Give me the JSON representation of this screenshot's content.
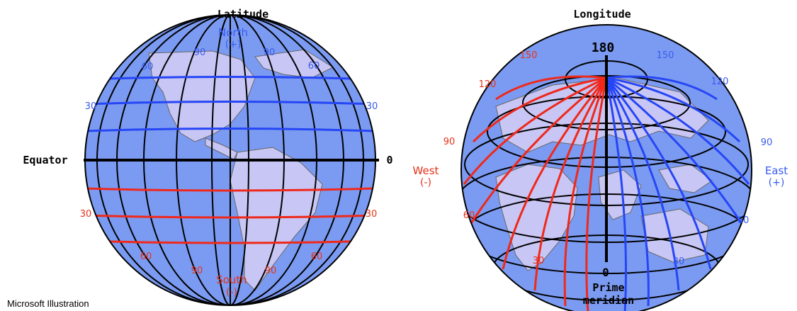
{
  "latitude": {
    "title": "Latitude",
    "north_label": "North",
    "north_sign": "(+)",
    "south_label": "South",
    "south_sign": "(-)",
    "equator_label": "Equator",
    "equator_value": "0",
    "north_marks": [
      "30",
      "30",
      "60",
      "60",
      "90",
      "90"
    ],
    "south_marks": [
      "30",
      "30",
      "60",
      "60",
      "90",
      "90"
    ]
  },
  "longitude": {
    "title": "Longitude",
    "top_value": "180",
    "bottom_value": "0",
    "prime_label_1": "Prime",
    "prime_label_2": "meridian",
    "west_label": "West",
    "west_sign": "(-)",
    "east_label": "East",
    "east_sign": "(+)",
    "west_marks": [
      "150",
      "120",
      "90",
      "60",
      "30"
    ],
    "east_marks": [
      "150",
      "120",
      "90",
      "60",
      "30"
    ]
  },
  "credit": "Microsoft Illustration",
  "colors": {
    "ocean": "#7b9bf2",
    "land": "#c8c6f4",
    "north_lines": "#2646f5",
    "south_lines": "#f0281a",
    "west_lines": "#f0281a",
    "east_lines": "#2646f5",
    "grid": "#000000"
  }
}
